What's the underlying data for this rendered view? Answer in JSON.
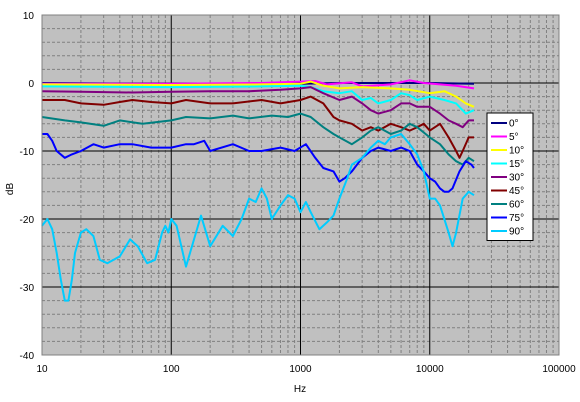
{
  "chart_data": {
    "type": "line",
    "title": "",
    "xlabel": "Hz",
    "ylabel": "dB",
    "xscale": "log",
    "xlim": [
      10,
      100000
    ],
    "ylim": [
      -40,
      10
    ],
    "x_ticks": [
      "10",
      "100",
      "1000",
      "10000",
      "100000"
    ],
    "y_ticks": [
      "10",
      "0",
      "-10",
      "-20",
      "-30",
      "-40"
    ],
    "y_tick_values": [
      10,
      0,
      -10,
      -20,
      -30,
      -40
    ],
    "grid": true,
    "legend_position": "right",
    "plot_background": "#c0c0c0",
    "series": [
      {
        "name": "0°",
        "color": "#000080",
        "points": [
          [
            10,
            0
          ],
          [
            50,
            -0.1
          ],
          [
            200,
            -0.1
          ],
          [
            1000,
            -0.1
          ],
          [
            2000,
            0
          ],
          [
            5000,
            0
          ],
          [
            10000,
            0
          ],
          [
            22000,
            -0.1
          ]
        ]
      },
      {
        "name": "5°",
        "color": "#ff00ff",
        "points": [
          [
            10,
            -0.1
          ],
          [
            100,
            -0.1
          ],
          [
            500,
            0
          ],
          [
            1000,
            0.2
          ],
          [
            1300,
            0.3
          ],
          [
            1600,
            -0.2
          ],
          [
            2500,
            0.1
          ],
          [
            3000,
            -0.5
          ],
          [
            5000,
            -0.2
          ],
          [
            7000,
            0.4
          ],
          [
            9000,
            0
          ],
          [
            12000,
            -0.2
          ],
          [
            16000,
            -0.4
          ],
          [
            22000,
            -0.8
          ]
        ]
      },
      {
        "name": "10°",
        "color": "#ffff00",
        "points": [
          [
            10,
            -0.2
          ],
          [
            100,
            -0.3
          ],
          [
            500,
            -0.2
          ],
          [
            1000,
            -0.1
          ],
          [
            1200,
            0.2
          ],
          [
            1500,
            -0.4
          ],
          [
            2000,
            -0.8
          ],
          [
            3000,
            -0.6
          ],
          [
            5000,
            -0.8
          ],
          [
            7000,
            -1
          ],
          [
            10000,
            -1.5
          ],
          [
            13000,
            -1.2
          ],
          [
            16000,
            -2
          ],
          [
            19000,
            -3
          ],
          [
            22000,
            -3.5
          ]
        ]
      },
      {
        "name": "15°",
        "color": "#00ffff",
        "points": [
          [
            10,
            -0.5
          ],
          [
            100,
            -0.6
          ],
          [
            500,
            -0.5
          ],
          [
            1000,
            -0.4
          ],
          [
            1200,
            -0.6
          ],
          [
            1500,
            -1.2
          ],
          [
            2000,
            -1.5
          ],
          [
            2500,
            -1.2
          ],
          [
            3000,
            -2.5
          ],
          [
            3500,
            -2.2
          ],
          [
            4000,
            -3
          ],
          [
            5000,
            -2.5
          ],
          [
            6000,
            -1.5
          ],
          [
            7000,
            -1.8
          ],
          [
            8000,
            -2.5
          ],
          [
            10000,
            -2
          ],
          [
            13000,
            -2.5
          ],
          [
            16000,
            -3
          ],
          [
            19000,
            -4.5
          ],
          [
            22000,
            -4
          ]
        ]
      },
      {
        "name": "30°",
        "color": "#800080",
        "points": [
          [
            10,
            -1.2
          ],
          [
            20,
            -1.3
          ],
          [
            50,
            -1.4
          ],
          [
            100,
            -1.3
          ],
          [
            200,
            -1.2
          ],
          [
            400,
            -1.2
          ],
          [
            700,
            -1
          ],
          [
            1000,
            -0.8
          ],
          [
            1200,
            -0.6
          ],
          [
            1500,
            -1.5
          ],
          [
            2000,
            -2.5
          ],
          [
            2500,
            -2
          ],
          [
            3000,
            -3
          ],
          [
            3500,
            -4
          ],
          [
            4000,
            -4.5
          ],
          [
            5000,
            -4
          ],
          [
            6000,
            -3
          ],
          [
            7000,
            -3
          ],
          [
            8000,
            -3.5
          ],
          [
            10000,
            -3.5
          ],
          [
            12000,
            -4.5
          ],
          [
            14000,
            -5.5
          ],
          [
            16000,
            -6
          ],
          [
            18000,
            -6.5
          ],
          [
            20000,
            -5.5
          ],
          [
            22000,
            -5.5
          ]
        ]
      },
      {
        "name": "45°",
        "color": "#800000",
        "points": [
          [
            10,
            -2.5
          ],
          [
            15,
            -2.5
          ],
          [
            20,
            -3
          ],
          [
            30,
            -3.2
          ],
          [
            40,
            -2.8
          ],
          [
            50,
            -2.5
          ],
          [
            70,
            -2.8
          ],
          [
            100,
            -3
          ],
          [
            130,
            -2.5
          ],
          [
            200,
            -3
          ],
          [
            300,
            -3
          ],
          [
            500,
            -2.5
          ],
          [
            700,
            -3
          ],
          [
            1000,
            -2.5
          ],
          [
            1200,
            -2
          ],
          [
            1500,
            -3
          ],
          [
            1800,
            -5
          ],
          [
            2000,
            -5.5
          ],
          [
            2500,
            -6
          ],
          [
            3000,
            -7
          ],
          [
            3500,
            -6.5
          ],
          [
            4000,
            -7
          ],
          [
            5000,
            -6
          ],
          [
            6000,
            -6.5
          ],
          [
            7000,
            -7
          ],
          [
            8000,
            -6.5
          ],
          [
            9000,
            -6
          ],
          [
            10000,
            -7
          ],
          [
            12000,
            -6
          ],
          [
            14000,
            -8
          ],
          [
            16000,
            -10
          ],
          [
            17000,
            -11
          ],
          [
            18000,
            -10
          ],
          [
            20000,
            -8
          ],
          [
            22000,
            -8
          ]
        ]
      },
      {
        "name": "60°",
        "color": "#008080",
        "points": [
          [
            10,
            -5
          ],
          [
            15,
            -5.5
          ],
          [
            20,
            -5.8
          ],
          [
            30,
            -6.3
          ],
          [
            40,
            -5.5
          ],
          [
            60,
            -6
          ],
          [
            100,
            -5.5
          ],
          [
            130,
            -5
          ],
          [
            200,
            -5.2
          ],
          [
            300,
            -4.8
          ],
          [
            400,
            -5.2
          ],
          [
            600,
            -4.8
          ],
          [
            800,
            -5
          ],
          [
            1000,
            -4.5
          ],
          [
            1200,
            -5
          ],
          [
            1500,
            -6.5
          ],
          [
            1800,
            -7.5
          ],
          [
            2000,
            -8
          ],
          [
            2500,
            -9
          ],
          [
            3000,
            -8
          ],
          [
            3500,
            -7
          ],
          [
            4000,
            -6.5
          ],
          [
            5000,
            -7.5
          ],
          [
            6000,
            -7
          ],
          [
            7000,
            -6
          ],
          [
            8000,
            -6.5
          ],
          [
            10000,
            -8
          ],
          [
            12000,
            -9
          ],
          [
            14000,
            -10.5
          ],
          [
            16000,
            -11.5
          ],
          [
            18000,
            -12
          ],
          [
            20000,
            -11
          ],
          [
            22000,
            -11.5
          ]
        ]
      },
      {
        "name": "75°",
        "color": "#0000ff",
        "points": [
          [
            10,
            -7.5
          ],
          [
            11,
            -7.5
          ],
          [
            12,
            -8.5
          ],
          [
            13,
            -10
          ],
          [
            15,
            -11
          ],
          [
            17,
            -10.5
          ],
          [
            20,
            -10
          ],
          [
            25,
            -9
          ],
          [
            30,
            -9.5
          ],
          [
            40,
            -9
          ],
          [
            50,
            -9
          ],
          [
            70,
            -9.5
          ],
          [
            100,
            -9.5
          ],
          [
            130,
            -9
          ],
          [
            150,
            -9
          ],
          [
            180,
            -8.5
          ],
          [
            200,
            -10
          ],
          [
            300,
            -9
          ],
          [
            400,
            -10
          ],
          [
            500,
            -10
          ],
          [
            700,
            -9.5
          ],
          [
            900,
            -10
          ],
          [
            1100,
            -9
          ],
          [
            1300,
            -11
          ],
          [
            1500,
            -12.5
          ],
          [
            1800,
            -13
          ],
          [
            2000,
            -14.5
          ],
          [
            2200,
            -14
          ],
          [
            2500,
            -13
          ],
          [
            3000,
            -11
          ],
          [
            3500,
            -10
          ],
          [
            4000,
            -9.5
          ],
          [
            5000,
            -10
          ],
          [
            6000,
            -9.5
          ],
          [
            7000,
            -10
          ],
          [
            8000,
            -12
          ],
          [
            9000,
            -13
          ],
          [
            10000,
            -14
          ],
          [
            11000,
            -14.5
          ],
          [
            12000,
            -15.5
          ],
          [
            13000,
            -16
          ],
          [
            14000,
            -16
          ],
          [
            15000,
            -15.5
          ],
          [
            17000,
            -13
          ],
          [
            19000,
            -11.5
          ],
          [
            21000,
            -12
          ],
          [
            22000,
            -12.5
          ]
        ]
      },
      {
        "name": "90°",
        "color": "#00ccff",
        "points": [
          [
            10,
            -21
          ],
          [
            11,
            -20
          ],
          [
            12,
            -21.5
          ],
          [
            13,
            -25
          ],
          [
            14,
            -29
          ],
          [
            15,
            -32
          ],
          [
            16,
            -32
          ],
          [
            17,
            -29
          ],
          [
            18,
            -25
          ],
          [
            20,
            -22
          ],
          [
            22,
            -21.5
          ],
          [
            25,
            -22.5
          ],
          [
            28,
            -26
          ],
          [
            32,
            -26.5
          ],
          [
            40,
            -25.5
          ],
          [
            48,
            -23
          ],
          [
            55,
            -24
          ],
          [
            65,
            -26.5
          ],
          [
            75,
            -26
          ],
          [
            85,
            -22
          ],
          [
            90,
            -21
          ],
          [
            95,
            -22
          ],
          [
            100,
            -20
          ],
          [
            110,
            -21
          ],
          [
            130,
            -27
          ],
          [
            150,
            -23
          ],
          [
            170,
            -19.5
          ],
          [
            200,
            -24
          ],
          [
            250,
            -21
          ],
          [
            300,
            -22.5
          ],
          [
            350,
            -20
          ],
          [
            400,
            -17
          ],
          [
            450,
            -17.5
          ],
          [
            500,
            -15.5
          ],
          [
            550,
            -17
          ],
          [
            600,
            -20
          ],
          [
            700,
            -18
          ],
          [
            800,
            -16.5
          ],
          [
            900,
            -17
          ],
          [
            1000,
            -19
          ],
          [
            1100,
            -17.5
          ],
          [
            1200,
            -19
          ],
          [
            1400,
            -21.5
          ],
          [
            1600,
            -20.5
          ],
          [
            1800,
            -19.5
          ],
          [
            2000,
            -17
          ],
          [
            2300,
            -14
          ],
          [
            2500,
            -12
          ],
          [
            3000,
            -11
          ],
          [
            3500,
            -9.5
          ],
          [
            4000,
            -8.5
          ],
          [
            4500,
            -9
          ],
          [
            5000,
            -8
          ],
          [
            6000,
            -7.5
          ],
          [
            7000,
            -9
          ],
          [
            8000,
            -10.5
          ],
          [
            9000,
            -13
          ],
          [
            10000,
            -17
          ],
          [
            11000,
            -17
          ],
          [
            12000,
            -18
          ],
          [
            14000,
            -22
          ],
          [
            15000,
            -24
          ],
          [
            16000,
            -22
          ],
          [
            18000,
            -17
          ],
          [
            20000,
            -16
          ],
          [
            22000,
            -16.5
          ]
        ]
      }
    ]
  }
}
